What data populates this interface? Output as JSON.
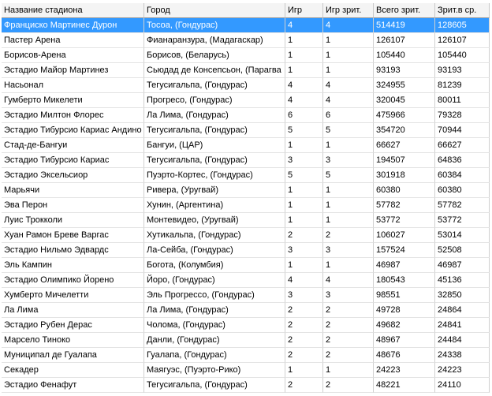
{
  "table": {
    "header": [
      "Название стадиона",
      "Город",
      "Игр",
      "Игр зрит.",
      "Всего зрит.",
      "Зрит.в ср."
    ],
    "rows": [
      [
        "Франциско Мартинес Дурон",
        "Тосоа, (Гондурас)",
        4,
        4,
        514419,
        128605
      ],
      [
        "Пастер Арена",
        "Фианаранзура, (Мадагаскар)",
        1,
        1,
        126107,
        126107
      ],
      [
        "Борисов-Арена",
        "Борисов, (Беларусь)",
        1,
        1,
        105440,
        105440
      ],
      [
        "Эстадио Майор Мартинез",
        "Сьюдад де Консепсьон, (Парагва",
        1,
        1,
        93193,
        93193
      ],
      [
        "Насьонал",
        "Тегусигальпа, (Гондурас)",
        4,
        4,
        324955,
        81239
      ],
      [
        "Гумберто Микелети",
        "Прогресо, (Гондурас)",
        4,
        4,
        320045,
        80011
      ],
      [
        "Эстадио Милтон Флорес",
        "Ла Лима, (Гондурас)",
        6,
        6,
        475966,
        79328
      ],
      [
        "Эстадио Тибурсио Кариас Андино",
        "Тегусигальпа, (Гондурас)",
        5,
        5,
        354720,
        70944
      ],
      [
        "Стад-де-Бангуи",
        "Бангуи, (ЦАР)",
        1,
        1,
        66627,
        66627
      ],
      [
        "Эстадио Тибурсио Кариас",
        "Тегусигальпа, (Гондурас)",
        3,
        3,
        194507,
        64836
      ],
      [
        "Эстадио Эксельсиор",
        "Пуэрто-Кортес, (Гондурас)",
        5,
        5,
        301918,
        60384
      ],
      [
        "Марьячи",
        "Ривера, (Уругвай)",
        1,
        1,
        60380,
        60380
      ],
      [
        "Эва Перон",
        "Хунин, (Аргентина)",
        1,
        1,
        57782,
        57782
      ],
      [
        "Луис Трокколи",
        "Монтевидео, (Уругвай)",
        1,
        1,
        53772,
        53772
      ],
      [
        "Хуан Рамон Бреве Варгас",
        "Хутикальпа, (Гондурас)",
        2,
        2,
        106027,
        53014
      ],
      [
        "Эстадио Нильмо Эдвардс",
        "Ла-Сейба, (Гондурас)",
        3,
        3,
        157524,
        52508
      ],
      [
        "Эль Кампин",
        "Богота, (Колумбия)",
        1,
        1,
        46987,
        46987
      ],
      [
        "Эстадио Олимпико Йорено",
        "Йоро, (Гондурас)",
        4,
        4,
        180543,
        45136
      ],
      [
        "Хумберто Мичелетти",
        "Эль Прогрессо, (Гондурас)",
        3,
        3,
        98551,
        32850
      ],
      [
        "Ла Лима",
        "Ла Лима, (Гондурас)",
        2,
        2,
        49728,
        24864
      ],
      [
        "Эстадио Рубен Дерас",
        "Чолома, (Гондурас)",
        2,
        2,
        49682,
        24841
      ],
      [
        "Марсело Тиноко",
        "Данли, (Гондурас)",
        2,
        2,
        48967,
        24484
      ],
      [
        "Муниципал де Гуалапа",
        "Гуалапа, (Гондурас)",
        2,
        2,
        48676,
        24338
      ],
      [
        "Секадер",
        "Маягуэс, (Пуэрто-Рико)",
        1,
        1,
        24223,
        24223
      ],
      [
        "Эстадио Фенафут",
        "Тегусигальпа, (Гондурас)",
        2,
        2,
        48221,
        24110
      ]
    ]
  }
}
